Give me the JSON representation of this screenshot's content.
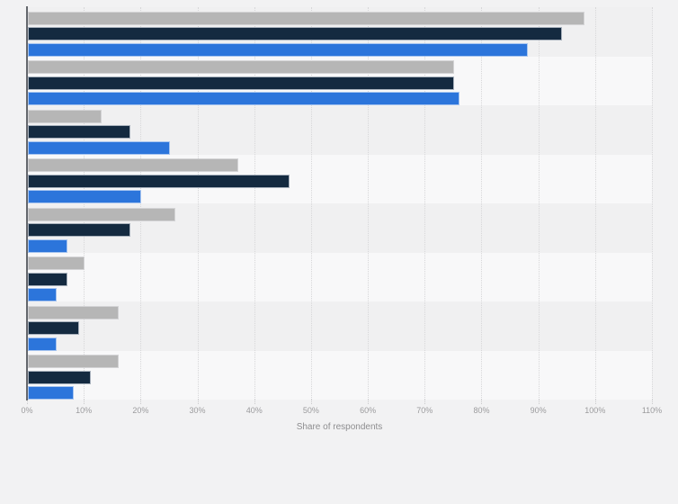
{
  "chart_data": {
    "type": "bar",
    "orientation": "horizontal",
    "title": "",
    "xlabel": "Share of respondents",
    "ylabel": "",
    "xlim": [
      0,
      110
    ],
    "x_tick_labels": [
      "0%",
      "10%",
      "20%",
      "30%",
      "40%",
      "50%",
      "60%",
      "70%",
      "80%",
      "90%",
      "100%",
      "110%"
    ],
    "grid": "vertical-dotted",
    "legend_position": "none-visible",
    "category_labels_visible": false,
    "num_groups": 8,
    "series": [
      {
        "name": "series-gray",
        "color": "#b6b6b6",
        "values": [
          98,
          75,
          13,
          37,
          26,
          10,
          16,
          16
        ]
      },
      {
        "name": "series-dark-navy",
        "color": "#142a40",
        "values": [
          94,
          75,
          18,
          46,
          18,
          7,
          9,
          11
        ]
      },
      {
        "name": "series-blue",
        "color": "#2c75db",
        "values": [
          88,
          76,
          25,
          20,
          7,
          5,
          5,
          8
        ]
      }
    ],
    "colors": {
      "page_background": "#f2f2f3",
      "band_odd": "#f0f0f1",
      "band_even": "#f8f8f9",
      "axis_line": "#64676c",
      "gridline": "#d7d7d9",
      "tick_label": "#9b9b9d",
      "axis_title": "#8d8d8f"
    }
  }
}
